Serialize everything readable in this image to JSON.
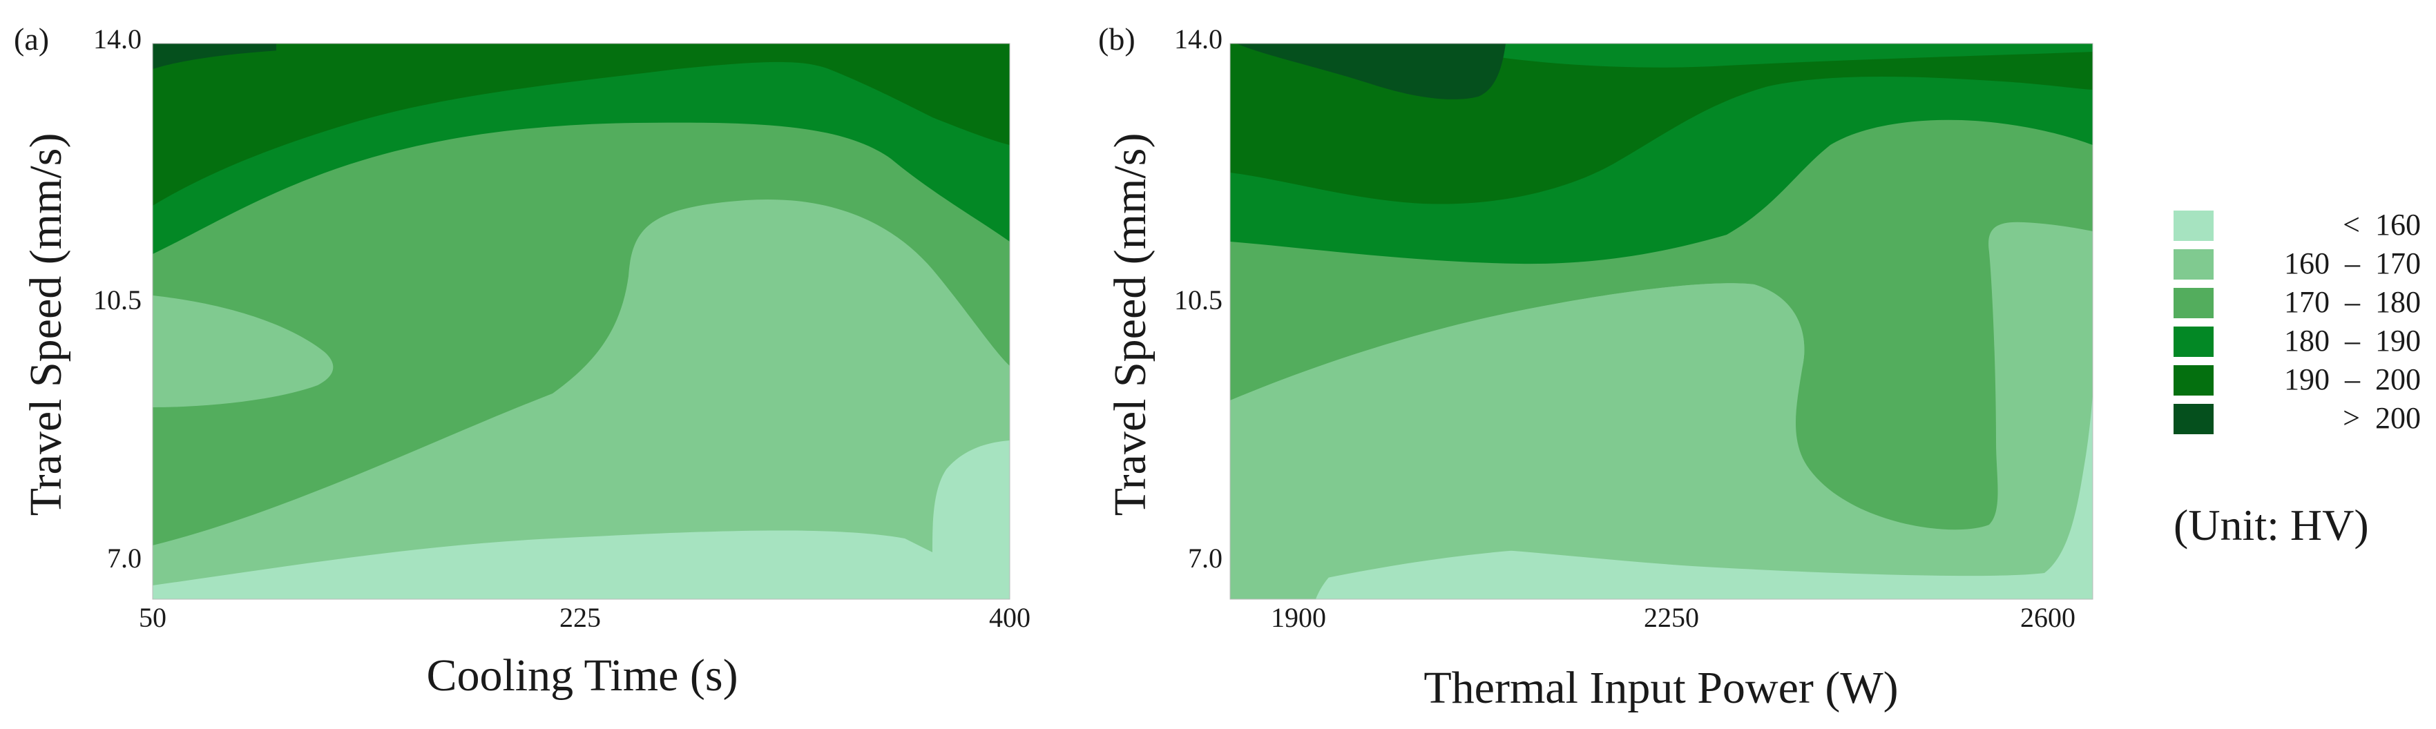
{
  "colors": {
    "lt160": "#a6e3c0",
    "160_170": "#80ca90",
    "170_180": "#53ad5d",
    "180_190": "#038825",
    "190_200": "#04700f",
    "gt200": "#05501d"
  },
  "legend": {
    "items": [
      {
        "label": "<  160",
        "color_key": "lt160"
      },
      {
        "label": "160  –  170",
        "color_key": "160_170"
      },
      {
        "label": "170  –  180",
        "color_key": "170_180"
      },
      {
        "label": "180  –  190",
        "color_key": "180_190"
      },
      {
        "label": "190  –  200",
        "color_key": "190_200"
      },
      {
        "label": ">  200",
        "color_key": "gt200"
      }
    ],
    "unit": "(Unit: HV)"
  },
  "chart_data": [
    {
      "panel_label": "(a)",
      "type": "contour",
      "xlabel": "Cooling Time (s)",
      "ylabel": "Travel Speed (mm/s)",
      "xticks": [
        "50",
        "225",
        "400"
      ],
      "yticks": [
        "7.0",
        "10.5",
        "14.0"
      ],
      "xlim": [
        50,
        400
      ],
      "ylim": [
        6.5,
        14.0
      ],
      "regions": [
        {
          "level": "lt160",
          "description_area": "bottom strip and right-bottom corner"
        },
        {
          "level": "160_170",
          "description_area": "center-right large area, left bulge near speed 10"
        },
        {
          "level": "170_180",
          "description_area": "middle band"
        },
        {
          "level": "180_190",
          "description_area": "upper band"
        },
        {
          "level": "190_200",
          "description_area": "top-left"
        },
        {
          "level": "gt200",
          "description_area": "top-left corner sliver"
        }
      ]
    },
    {
      "panel_label": "(b)",
      "type": "contour",
      "xlabel": "Thermal Input Power (W)",
      "ylabel": "Travel Speed (mm/s)",
      "xticks": [
        "1900",
        "2250",
        "2600"
      ],
      "yticks": [
        "7.0",
        "10.5",
        "14.0"
      ],
      "xlim": [
        1830,
        2640
      ],
      "ylim": [
        6.5,
        14.0
      ],
      "regions": [
        {
          "level": "lt160",
          "description_area": "bottom strip and right edge"
        },
        {
          "level": "160_170",
          "description_area": "lower-left and right band"
        },
        {
          "level": "170_180",
          "description_area": "middle band and central-right lobe"
        },
        {
          "level": "180_190",
          "description_area": "upper band"
        },
        {
          "level": "190_200",
          "description_area": "upper-left"
        },
        {
          "level": "gt200",
          "description_area": "top-left blob"
        }
      ]
    }
  ]
}
